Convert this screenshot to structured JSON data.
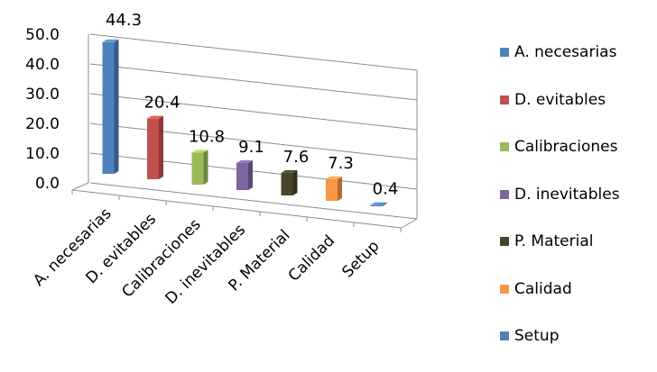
{
  "chart_data": {
    "type": "bar",
    "title": "",
    "xlabel": "",
    "ylabel": "",
    "categories": [
      "A. necesarias",
      "D. evitables",
      "Calibraciones",
      "D. inevitables",
      "P. Material",
      "Calidad",
      "Setup"
    ],
    "values": [
      44.3,
      20.4,
      10.8,
      9.1,
      7.6,
      7.3,
      0.4
    ],
    "value_labels": [
      "44.3",
      "20.4",
      "10.8",
      "9.1",
      "7.6",
      "7.3",
      "0.4"
    ],
    "colors": [
      "#4F81BD",
      "#C0504D",
      "#9BBB59",
      "#8064A2",
      "#4A452A",
      "#F79646",
      "#4F81BD"
    ],
    "ylim": [
      0,
      50
    ],
    "yticks": [
      "0.0",
      "10.0",
      "20.0",
      "30.0",
      "40.0",
      "50.0"
    ],
    "grid": true,
    "legend_position": "right",
    "style": "3d-column"
  }
}
